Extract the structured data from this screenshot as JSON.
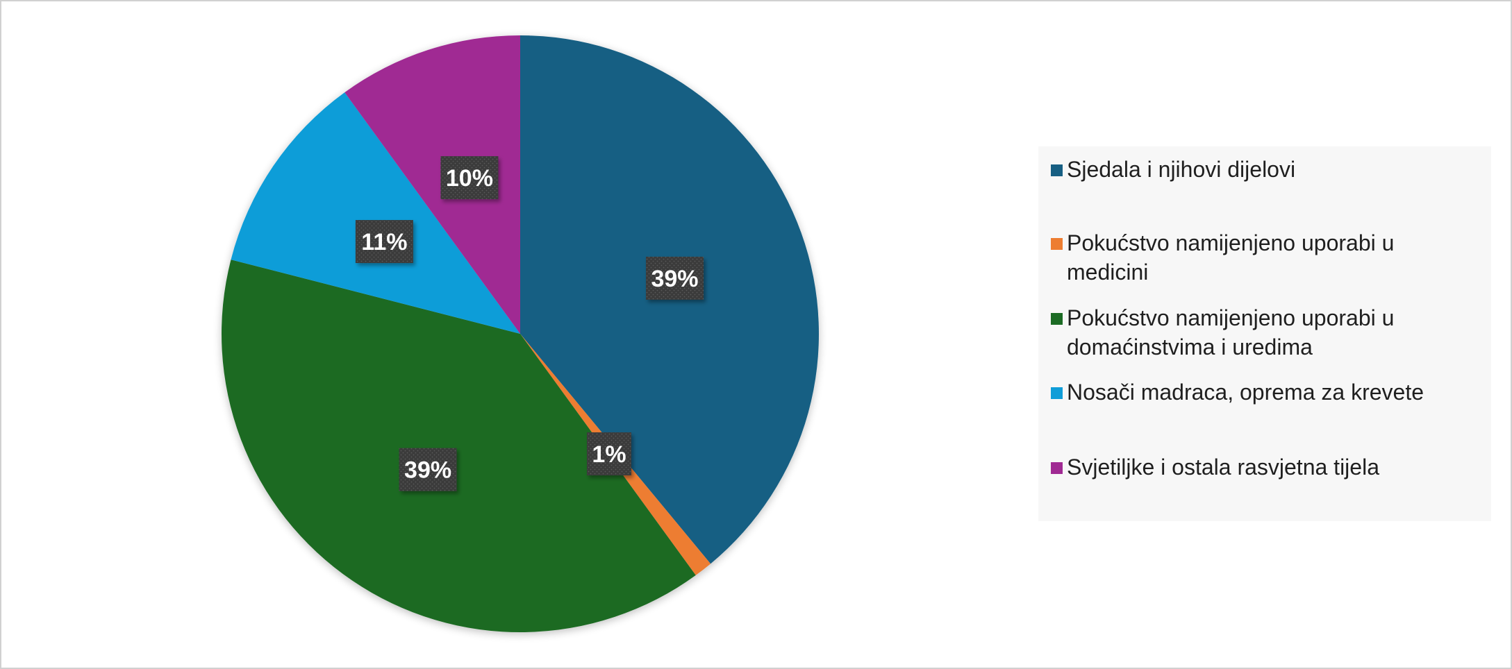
{
  "chart_data": {
    "type": "pie",
    "categories": [
      "Sjedala i njihovi dijelovi",
      "Pokućstvo namijenjeno uporabi u medicini",
      "Pokućstvo namijenjeno uporabi u domaćinstvima i uredima",
      "Nosači madraca, oprema za krevete",
      "Svjetiljke i ostala rasvjetna tijela"
    ],
    "values": [
      39,
      1,
      39,
      11,
      10
    ],
    "data_labels": [
      "39%",
      "1%",
      "39%",
      "11%",
      "10%"
    ],
    "colors": [
      "#175f83",
      "#ed7d31",
      "#1c6b24",
      "#0f9dd8",
      "#a02a93"
    ],
    "legend_position": "right",
    "label_box_color": "#3a3a3a",
    "label_text_color": "#ffffff"
  }
}
